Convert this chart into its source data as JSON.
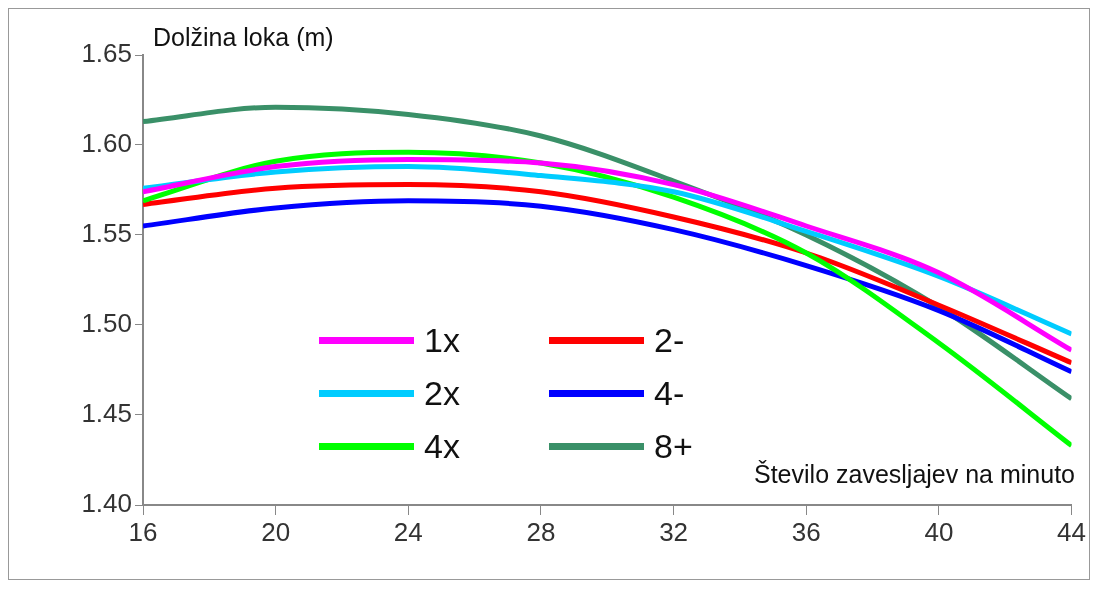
{
  "chart_data": {
    "type": "line",
    "xlabel": "Število zavesljajev na minuto",
    "ylabel": "Dolžina loka (m)",
    "x": [
      16,
      20,
      24,
      28,
      32,
      36,
      40,
      44
    ],
    "xlim": [
      16,
      44
    ],
    "xticks": [
      16,
      20,
      24,
      28,
      32,
      36,
      40,
      44
    ],
    "ylim": [
      1.4,
      1.65
    ],
    "yticks": [
      {
        "value": 1.4,
        "label": "1.40"
      },
      {
        "value": 1.45,
        "label": "1.45"
      },
      {
        "value": 1.5,
        "label": "1.50"
      },
      {
        "value": 1.55,
        "label": "1.55"
      },
      {
        "value": 1.6,
        "label": "1.60"
      },
      {
        "value": 1.65,
        "label": "1.65"
      }
    ],
    "grid": false,
    "legend": "bottom left",
    "marker": "none",
    "line_style": "solid",
    "series": [
      {
        "name": "1x",
        "color": "#ff00ff",
        "values": [
          1.574,
          1.588,
          1.592,
          1.59,
          1.578,
          1.555,
          1.529,
          1.486
        ]
      },
      {
        "name": "2x",
        "color": "#00ccff",
        "values": [
          1.576,
          1.585,
          1.588,
          1.583,
          1.574,
          1.552,
          1.527,
          1.495
        ]
      },
      {
        "name": "4x",
        "color": "#00ff00",
        "values": [
          1.569,
          1.591,
          1.596,
          1.59,
          1.571,
          1.54,
          1.49,
          1.433
        ]
      },
      {
        "name": "2-",
        "color": "#ff0000",
        "values": [
          1.567,
          1.576,
          1.578,
          1.574,
          1.56,
          1.54,
          1.511,
          1.479
        ]
      },
      {
        "name": "4-",
        "color": "#0000ff",
        "values": [
          1.555,
          1.565,
          1.569,
          1.566,
          1.553,
          1.533,
          1.508,
          1.474
        ]
      },
      {
        "name": "8+",
        "color": "#3a9068",
        "values": [
          1.613,
          1.621,
          1.617,
          1.605,
          1.58,
          1.55,
          1.51,
          1.459
        ]
      }
    ]
  }
}
